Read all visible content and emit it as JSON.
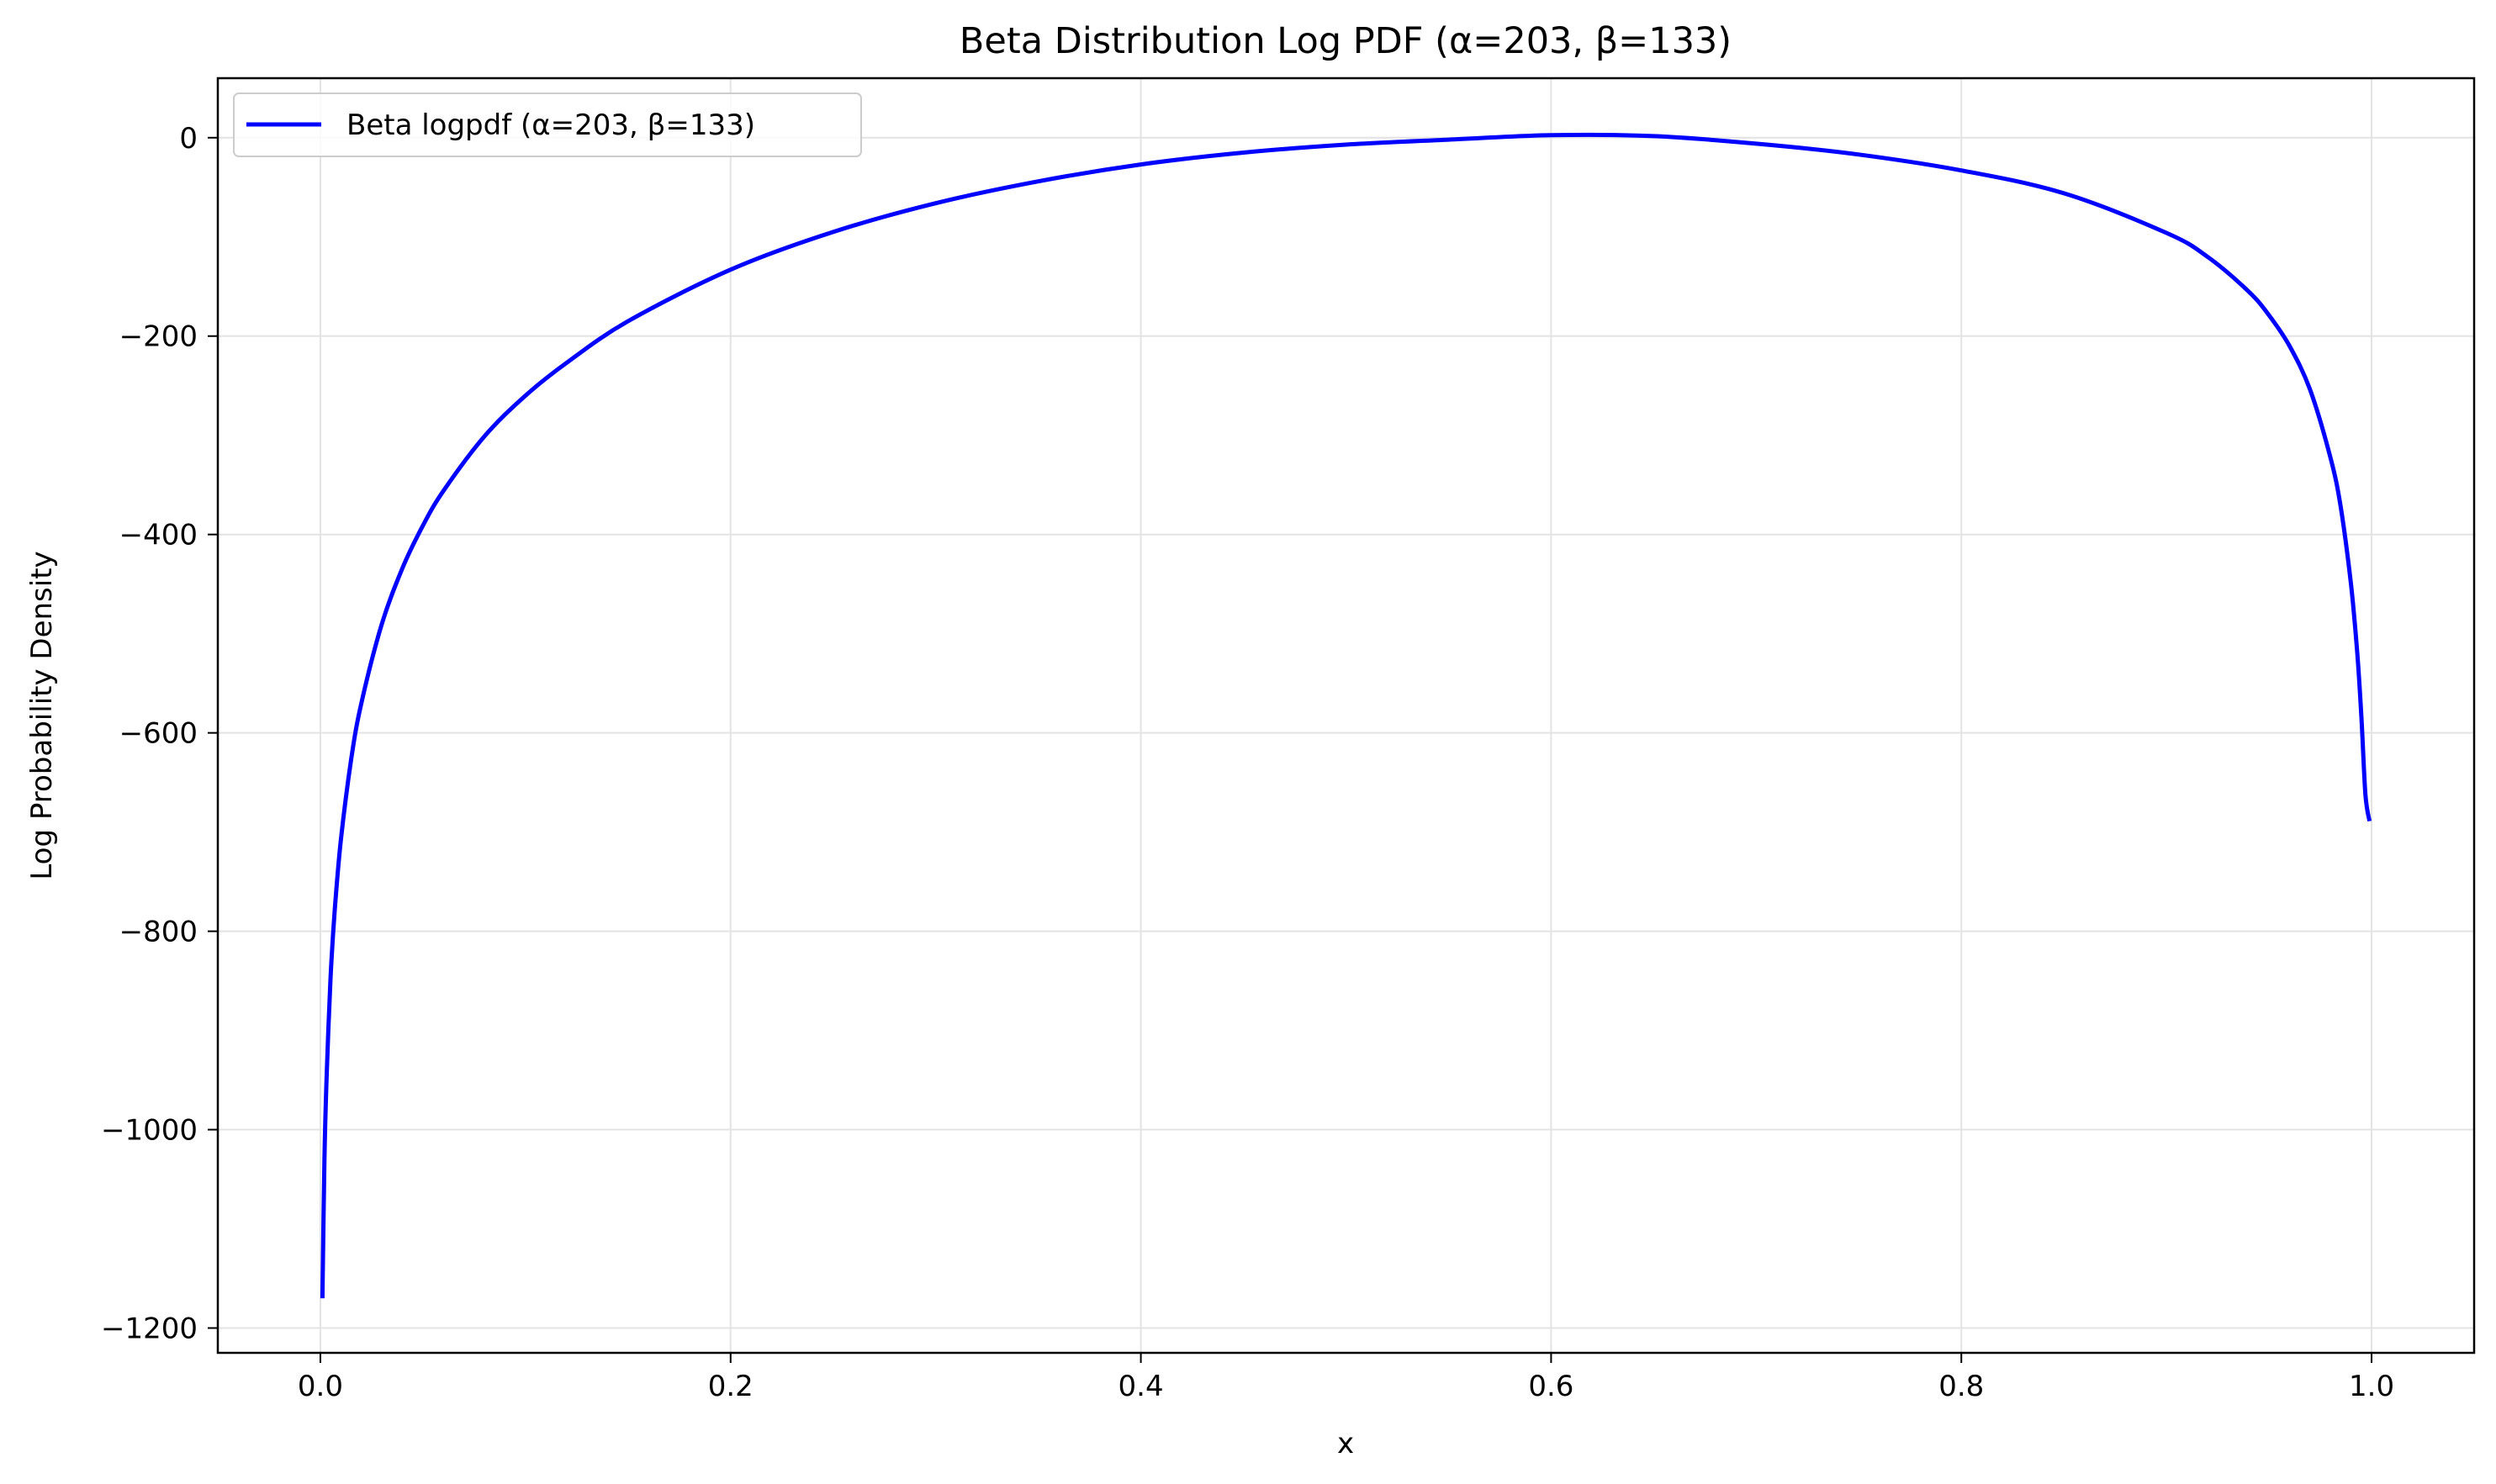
{
  "chart_data": {
    "type": "line",
    "title": "Beta Distribution Log PDF (α=203, β=133)",
    "xlabel": "x",
    "ylabel": "Log Probability Density",
    "xlim": [
      -0.05,
      1.05
    ],
    "ylim": [
      -1225,
      60
    ],
    "xticks": [
      0.0,
      0.2,
      0.4,
      0.6,
      0.8,
      1.0
    ],
    "xtick_labels": [
      "0.0",
      "0.2",
      "0.4",
      "0.6",
      "0.8",
      "1.0"
    ],
    "yticks": [
      0,
      -200,
      -400,
      -600,
      -800,
      -1000,
      -1200
    ],
    "ytick_labels": [
      "0",
      "−200",
      "−400",
      "−600",
      "−800",
      "−1000",
      "−1200"
    ],
    "grid": true,
    "legend_position": "upper-left",
    "series": [
      {
        "name": "Beta logpdf (α=203, β=133)",
        "color": "#0000ff",
        "x": [
          0.001,
          0.002,
          0.003,
          0.005,
          0.007,
          0.01,
          0.015,
          0.02,
          0.03,
          0.04,
          0.05,
          0.06,
          0.08,
          0.1,
          0.12,
          0.15,
          0.2,
          0.25,
          0.3,
          0.35,
          0.4,
          0.45,
          0.5,
          0.55,
          0.6,
          0.65,
          0.7,
          0.75,
          0.8,
          0.85,
          0.9,
          0.92,
          0.94,
          0.95,
          0.96,
          0.97,
          0.98,
          0.985,
          0.99,
          0.993,
          0.995,
          0.997,
          0.999
        ],
        "y": [
          -1170,
          -1030,
          -949,
          -846,
          -779,
          -708,
          -627,
          -570,
          -490,
          -434,
          -391,
          -356,
          -301,
          -260,
          -227,
          -185,
          -133,
          -95,
          -66,
          -44,
          -27,
          -15,
          -7,
          -2,
          2.5,
          1.6,
          -6,
          -17,
          -33,
          -56,
          -96,
          -120,
          -155,
          -179,
          -210,
          -254,
          -323,
          -373,
          -451,
          -519,
          -582,
          -662,
          -689
        ]
      }
    ]
  }
}
